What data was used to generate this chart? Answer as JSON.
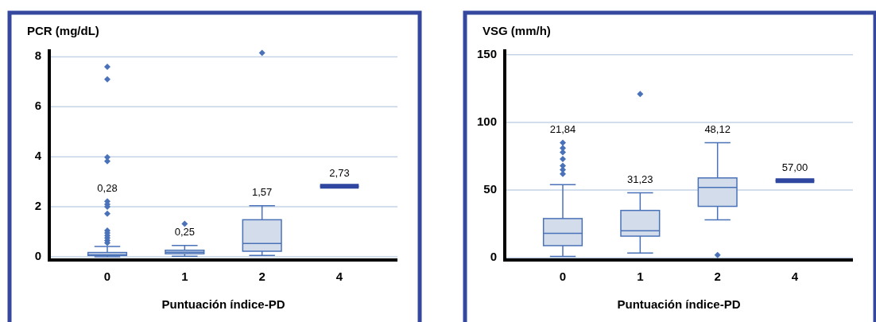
{
  "chart_data": [
    {
      "type": "box",
      "ylabel": "PCR (mg/dL)",
      "xlabel": "Puntuación índice-PD",
      "categories": [
        "0",
        "1",
        "2",
        "4"
      ],
      "colors": [
        "#4a72b8",
        "#4a72b8",
        "#4a72b8",
        "#2f47a0"
      ],
      "ylim": [
        -0.13,
        8.3
      ],
      "yticks": [
        0,
        2,
        4,
        6,
        8
      ],
      "grid": "y",
      "marker": "diamond",
      "boxes": [
        {
          "low": 0,
          "q1": 0.05,
          "median": 0.08,
          "q3": 0.17,
          "high": 0.41,
          "outliers": [
            7.6,
            7.1,
            3.98,
            3.82,
            2.22,
            2.1,
            2.0,
            1.72,
            1.05,
            0.95,
            0.85,
            0.75,
            0.65,
            0.55
          ]
        },
        {
          "low": 0.02,
          "q1": 0.12,
          "median": 0.18,
          "q3": 0.26,
          "high": 0.45,
          "outliers": [
            1.32
          ]
        },
        {
          "low": 0.05,
          "q1": 0.22,
          "median": 0.53,
          "q3": 1.48,
          "high": 2.04,
          "outliers": [
            8.16
          ]
        },
        {
          "low": 2.82,
          "q1": 2.82,
          "median": 2.82,
          "q3": 2.82,
          "high": 2.82
        }
      ],
      "annotations": [
        "0,28",
        "0,25",
        "1,57",
        "2,73"
      ]
    },
    {
      "type": "box",
      "ylabel": "VSG (mm/h)",
      "xlabel": "Puntuación índice-PD",
      "categories": [
        "0",
        "1",
        "2",
        "4"
      ],
      "colors": [
        "#4a72b8",
        "#4a72b8",
        "#4a72b8",
        "#2f47a0"
      ],
      "ylim": [
        -1.6,
        154
      ],
      "yticks": [
        0,
        50,
        100,
        150
      ],
      "grid": "y",
      "marker": "diamond",
      "boxes": [
        {
          "low": 1,
          "q1": 9,
          "median": 18,
          "q3": 29,
          "high": 54,
          "outliers": [
            85,
            81,
            78,
            73,
            68,
            65,
            62
          ]
        },
        {
          "low": 3.5,
          "q1": 16,
          "median": 20,
          "q3": 35,
          "high": 48,
          "outliers": [
            121
          ]
        },
        {
          "low": 28,
          "q1": 38,
          "median": 52,
          "q3": 59,
          "high": 85,
          "outliers": [
            2
          ]
        },
        {
          "low": 57,
          "q1": 57,
          "median": 57,
          "q3": 57,
          "high": 57
        }
      ],
      "annotations": [
        "21,84",
        "31,23",
        "48,12",
        "57,00"
      ]
    }
  ]
}
